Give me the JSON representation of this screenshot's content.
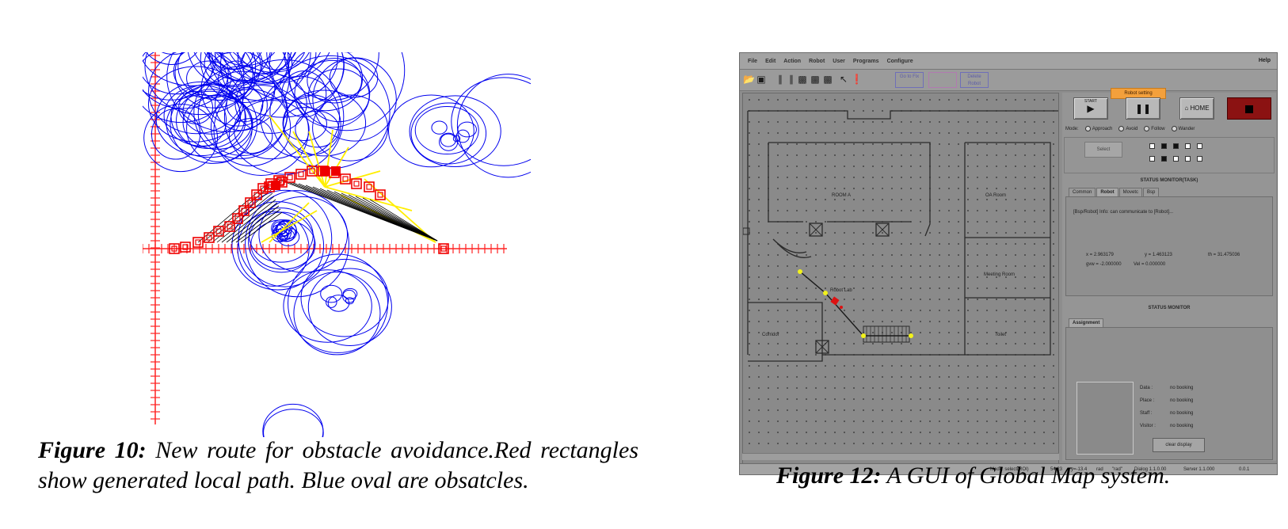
{
  "figure10": {
    "caption_label": "Figure 10:",
    "caption_text": "New route for obstacle avoidance.Red rectangles show generated local path. Blue oval are obsatcles.",
    "colors": {
      "obstacle": "#0000ee",
      "path_rect": "#ee0000",
      "beam": "#ffee00",
      "ray": "#000000",
      "axis": "#ff2222"
    }
  },
  "figure12": {
    "caption_label": "Figure 12:",
    "caption_text": "A GUI of Global Map system.",
    "menu": [
      "File",
      "Edit",
      "Action",
      "Robot",
      "User",
      "Programs",
      "Configure"
    ],
    "menu_help": "Help",
    "toolbar_boxes": [
      "Go to Fix",
      "Delete Robot"
    ],
    "robot_setting": "Robot setting",
    "buttons": {
      "start_small": "START",
      "home": "HOME",
      "clear": "clear display",
      "grey": "Select"
    },
    "modes": [
      "Mode:",
      "Approach",
      "Avoid",
      "Follow",
      "Wander"
    ],
    "status_monitor_title": "STATUS MONITOR(TASK)",
    "tabs1": [
      "Common",
      "Robot",
      "Movetc",
      "Bsp"
    ],
    "message": "[Bsp/Robot] Info: can communicate to [Robot]...",
    "coords": {
      "x": "x = 2.963179",
      "y": "y = 1.463123",
      "th": "th = 31.475036",
      "gvw": "gvw = -2.000000",
      "vel": "Vel = 0.000000"
    },
    "status_monitor2_title": "STATUS MONITOR",
    "tabs2": [
      "Assignment"
    ],
    "status_items": [
      {
        "label": "Data :",
        "value": "no booking"
      },
      {
        "label": "Place :",
        "value": "no booking"
      },
      {
        "label": "Staff :",
        "value": "no booking"
      },
      {
        "label": "Visitor :",
        "value": "no booking"
      }
    ],
    "map_labels": {
      "room_a": "ROOM A",
      "room_b": "OA Room",
      "meeting": "Meeting Room",
      "corridor": "Corridor",
      "toilet": "Toilet",
      "robot": "Robot Lab"
    },
    "statusbar": [
      "Mode: select(ROI)",
      "54.23",
      "y=-13.4",
      "rad",
      "\"rad\"",
      "Dialog 1.1.0.00",
      "Server 1.1.000",
      "0.0.1"
    ]
  }
}
